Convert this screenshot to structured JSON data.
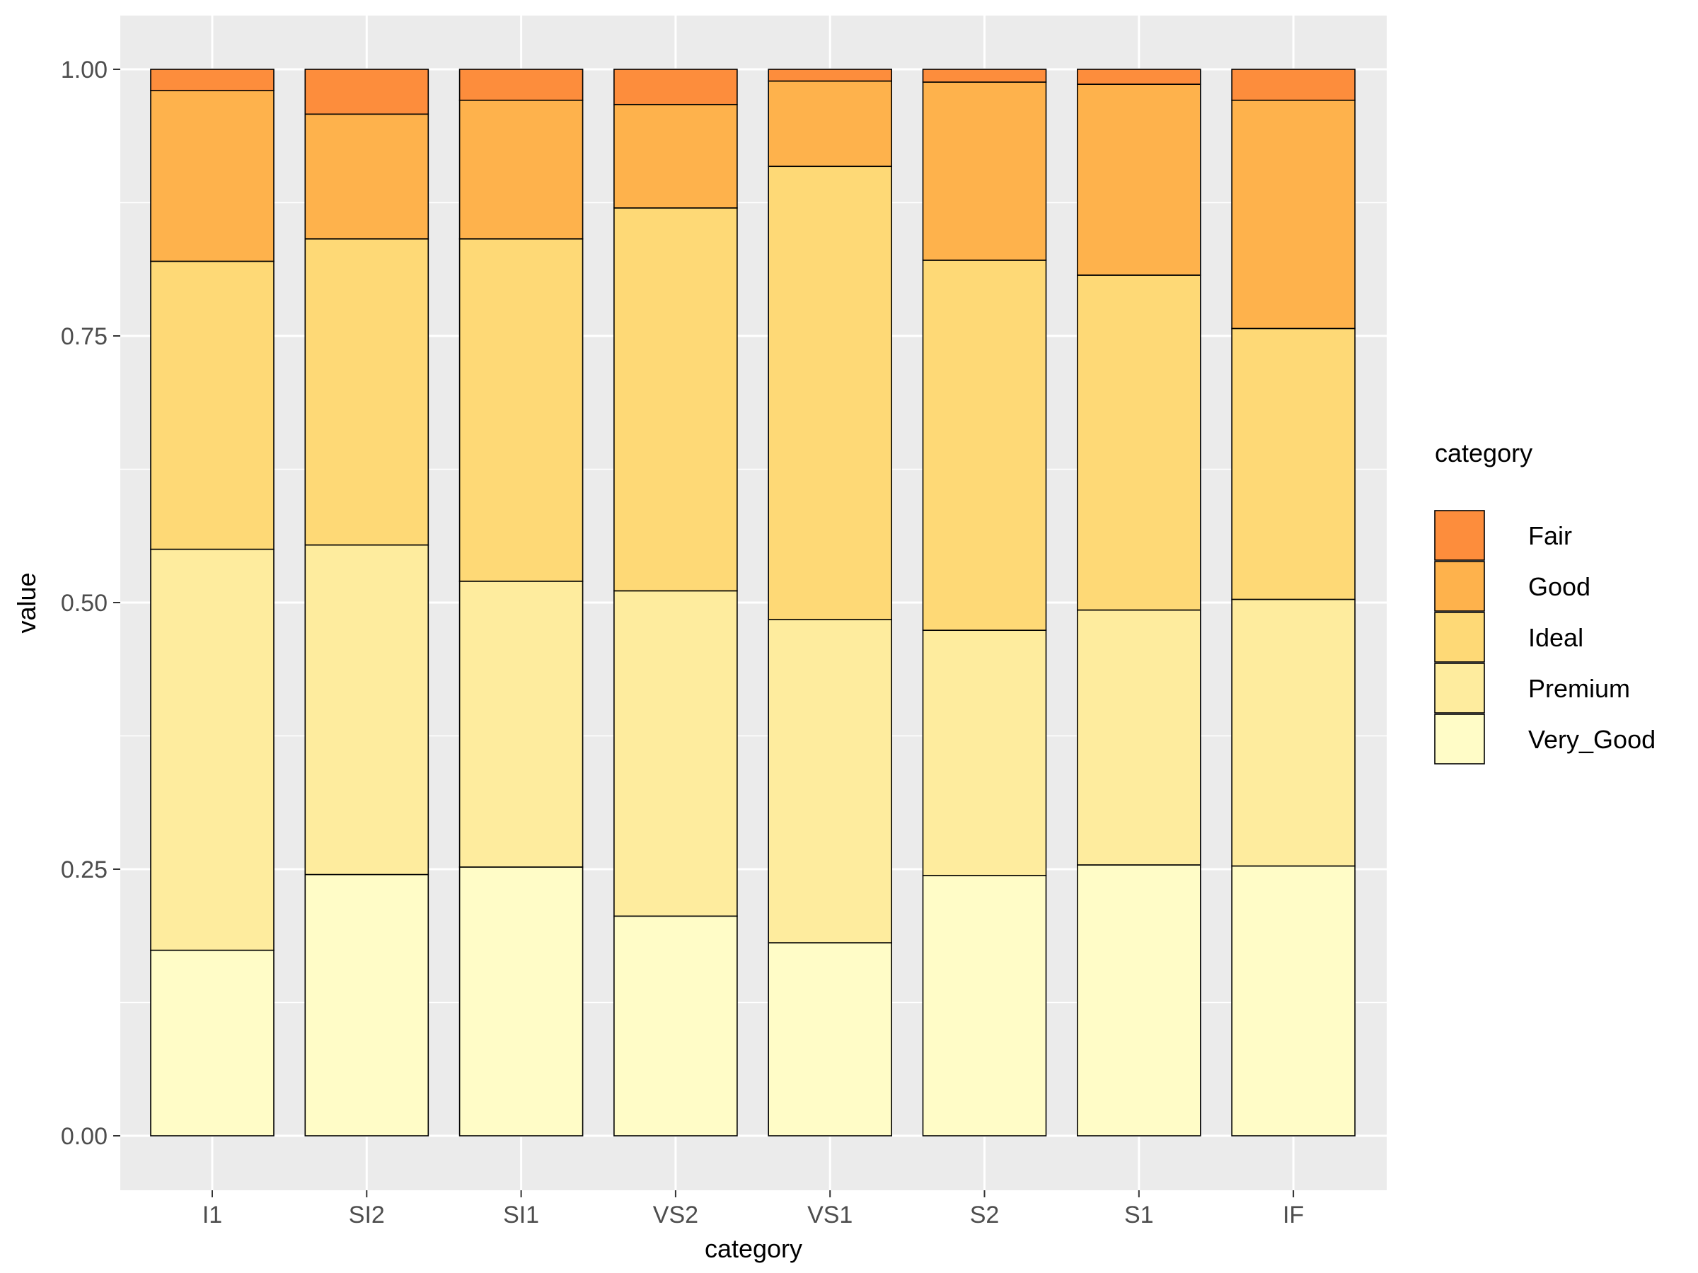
{
  "chart_data": {
    "type": "bar",
    "stacked": true,
    "title": "",
    "xlabel": "category",
    "ylabel": "value",
    "ylim": [
      0,
      1
    ],
    "yticks": [
      "0.00",
      "0.25",
      "0.50",
      "0.75",
      "1.00"
    ],
    "categories": [
      "I1",
      "SI2",
      "SI1",
      "VS2",
      "VS1",
      "S2",
      "S1",
      "IF"
    ],
    "legend": {
      "title": "category",
      "position": "right"
    },
    "grid": true,
    "series": [
      {
        "name": "Very_Good",
        "color": "#FFFCC7",
        "values": [
          0.174,
          0.245,
          0.252,
          0.206,
          0.181,
          0.244,
          0.254,
          0.253
        ]
      },
      {
        "name": "Premium",
        "color": "#FEEC9E",
        "values": [
          0.376,
          0.309,
          0.268,
          0.305,
          0.303,
          0.23,
          0.239,
          0.25
        ]
      },
      {
        "name": "Ideal",
        "color": "#FED976",
        "values": [
          0.27,
          0.287,
          0.321,
          0.359,
          0.425,
          0.347,
          0.314,
          0.254
        ]
      },
      {
        "name": "Good",
        "color": "#FEB24C",
        "values": [
          0.16,
          0.117,
          0.13,
          0.097,
          0.08,
          0.167,
          0.179,
          0.214
        ]
      },
      {
        "name": "Fair",
        "color": "#FD8D3C",
        "values": [
          0.02,
          0.042,
          0.029,
          0.033,
          0.011,
          0.012,
          0.014,
          0.029
        ]
      }
    ]
  }
}
